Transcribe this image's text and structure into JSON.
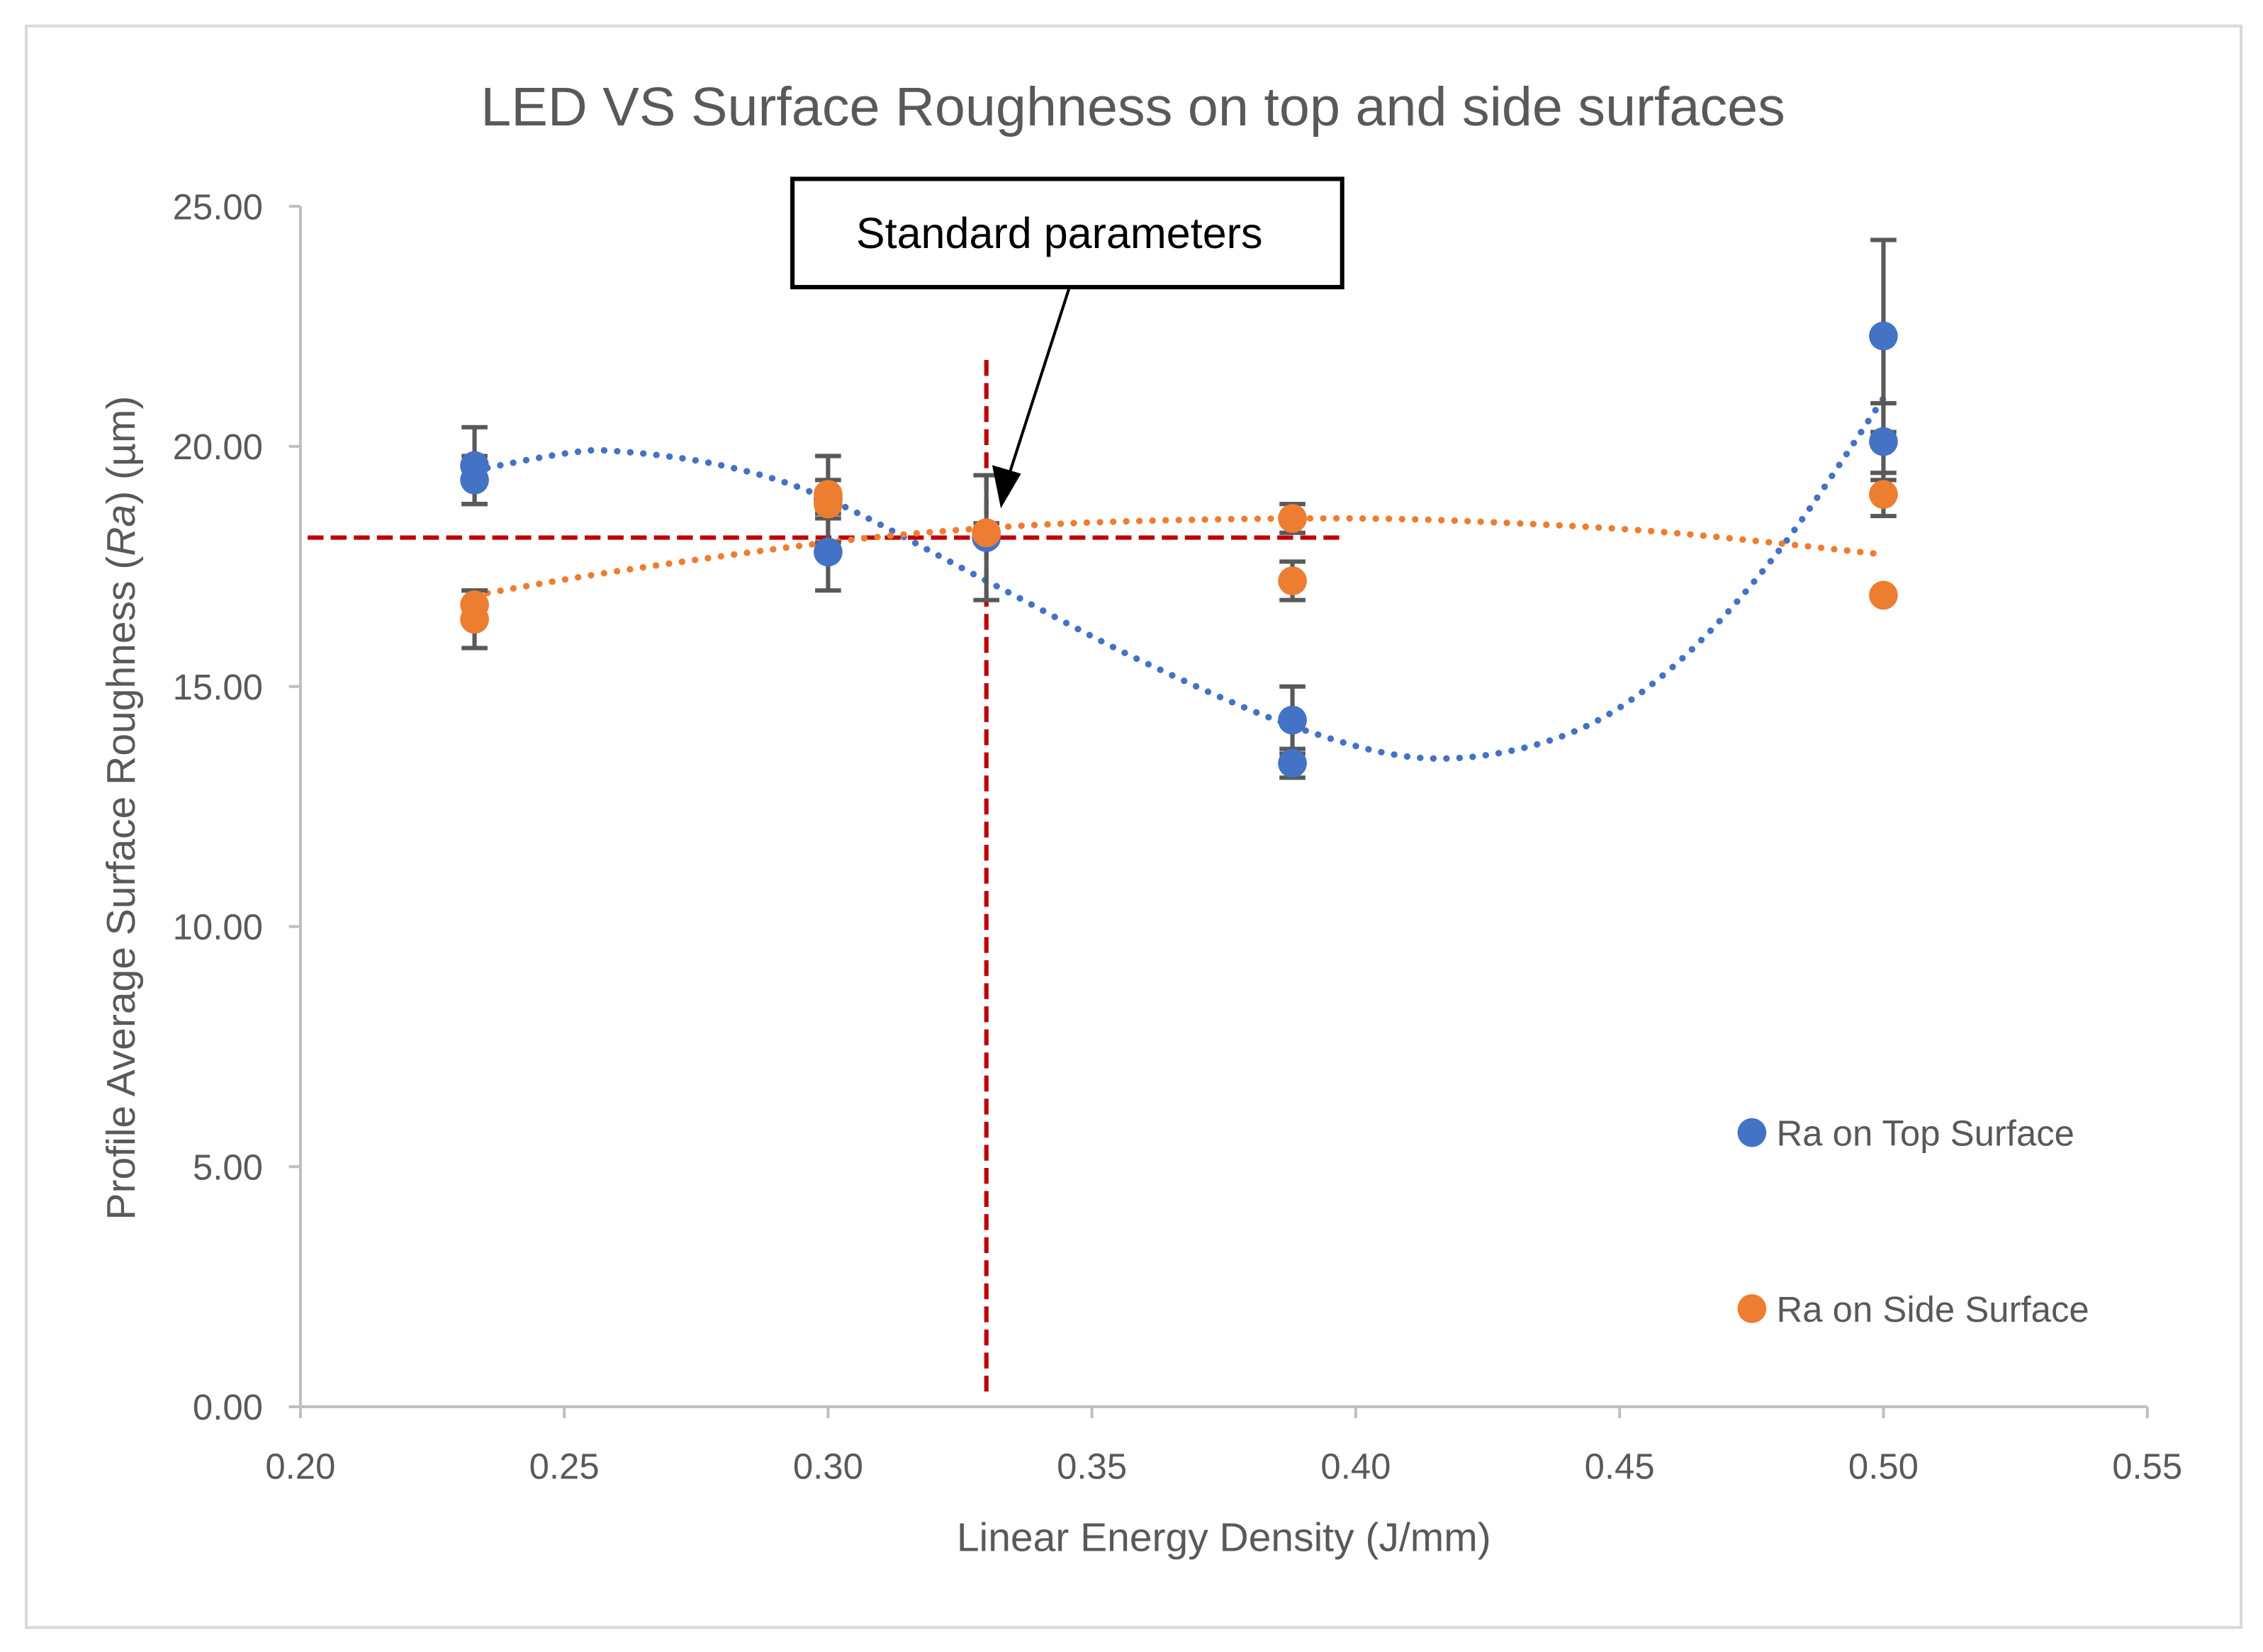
{
  "chart_data": {
    "type": "scatter",
    "title": "LED VS Surface Roughness on top and side surfaces",
    "xlabel": "Linear Energy Density (J/mm)",
    "ylabel": "Profile Average Surface Roughness (Ra) (µm)",
    "xlim": [
      0.2,
      0.55
    ],
    "ylim": [
      0,
      25
    ],
    "xticks": [
      "0.20",
      "0.25",
      "0.30",
      "0.35",
      "0.40",
      "0.45",
      "0.50",
      "0.55"
    ],
    "yticks": [
      "0.00",
      "5.00",
      "10.00",
      "15.00",
      "20.00",
      "25.00"
    ],
    "grid": false,
    "legend_position": "right",
    "series": [
      {
        "name": "Ra on Top Surface",
        "color": "#4472C4",
        "points": [
          {
            "x": 0.233,
            "y": 19.6,
            "err": 0.8
          },
          {
            "x": 0.233,
            "y": 19.3,
            "err": 0.5
          },
          {
            "x": 0.3,
            "y": 18.9,
            "err": 0.9
          },
          {
            "x": 0.3,
            "y": 17.8,
            "err": 0.8
          },
          {
            "x": 0.33,
            "y": 18.1,
            "err": 1.3
          },
          {
            "x": 0.388,
            "y": 14.3,
            "err": 0.7
          },
          {
            "x": 0.388,
            "y": 13.4,
            "err": 0.3
          },
          {
            "x": 0.5,
            "y": 22.3,
            "err": 2.0
          },
          {
            "x": 0.5,
            "y": 20.1,
            "err": 0.8
          }
        ],
        "trendline": {
          "type": "polynomial",
          "x": [
            0.233,
            0.25,
            0.26,
            0.28,
            0.3,
            0.33,
            0.36,
            0.39,
            0.415,
            0.44,
            0.46,
            0.48,
            0.5
          ],
          "y": [
            19.5,
            19.85,
            19.9,
            19.6,
            18.9,
            17.2,
            15.5,
            14.1,
            13.5,
            14.0,
            15.4,
            17.8,
            21.0
          ]
        }
      },
      {
        "name": "Ra on Side Surface",
        "color": "#ED7D31",
        "points": [
          {
            "x": 0.233,
            "y": 16.7,
            "err": 0.3
          },
          {
            "x": 0.233,
            "y": 16.4,
            "err": 0.6
          },
          {
            "x": 0.3,
            "y": 19.0,
            "err": 0.3
          },
          {
            "x": 0.3,
            "y": 18.8,
            "err": 0.3
          },
          {
            "x": 0.33,
            "y": 18.2,
            "err": 0.2
          },
          {
            "x": 0.388,
            "y": 18.5,
            "err": 0.3
          },
          {
            "x": 0.388,
            "y": 17.2,
            "err": 0.4
          },
          {
            "x": 0.5,
            "y": 19.0,
            "err": 0.45
          },
          {
            "x": 0.5,
            "y": 16.9,
            "err": 0
          }
        ],
        "trendline": {
          "type": "polynomial",
          "x": [
            0.233,
            0.26,
            0.3,
            0.33,
            0.36,
            0.4,
            0.43,
            0.46,
            0.5
          ],
          "y": [
            16.9,
            17.4,
            18.0,
            18.3,
            18.45,
            18.5,
            18.4,
            18.2,
            17.75
          ]
        }
      }
    ],
    "reference_lines": [
      {
        "orientation": "horizontal",
        "y": 18.1,
        "x_range": [
          0.2,
          0.4
        ],
        "color": "#C00000"
      },
      {
        "orientation": "vertical",
        "x": 0.33,
        "y_range": [
          0.2,
          21.8
        ],
        "color": "#C00000"
      }
    ],
    "annotation": {
      "text": "Standard parameters",
      "points_to": {
        "x": 0.33,
        "y": 18.8
      }
    }
  }
}
